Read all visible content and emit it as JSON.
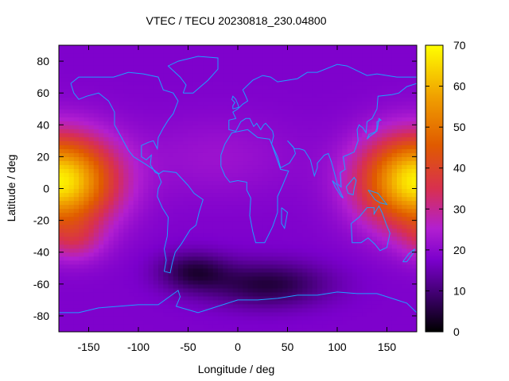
{
  "chart_data": {
    "type": "heatmap",
    "title": "VTEC / TECU 20230818_230.04800",
    "xlabel": "Longitude / deg",
    "ylabel": "Latitude / deg",
    "xlim": [
      -180,
      180
    ],
    "ylim": [
      -90,
      90
    ],
    "x_ticks": [
      -150,
      -100,
      -50,
      0,
      50,
      100,
      150
    ],
    "y_ticks": [
      -80,
      -60,
      -40,
      -20,
      0,
      20,
      40,
      60,
      80
    ],
    "colorbar": {
      "range": [
        0,
        70
      ],
      "ticks": [
        0,
        10,
        20,
        30,
        40,
        50,
        60,
        70
      ],
      "palette": [
        "#000000",
        "#3a0066",
        "#7b00cc",
        "#b21fd0",
        "#d8304f",
        "#e05a00",
        "#f0a000",
        "#ffff00"
      ]
    },
    "grid": false,
    "overlay": "coastlines",
    "features": [
      {
        "name": "peak-pacific-west",
        "lon": -180,
        "lat": 5,
        "vtec": 68
      },
      {
        "name": "peak-pacific-east",
        "lon": 180,
        "lat": 5,
        "vtec": 68
      },
      {
        "name": "south-anomaly",
        "lon": -165,
        "lat": -32,
        "vtec": 38
      },
      {
        "name": "atlantic-minimum",
        "lon": -45,
        "lat": -52,
        "vtec": 6
      },
      {
        "name": "southern-ocean-minimum",
        "lon": 30,
        "lat": -60,
        "vtec": 5
      }
    ],
    "background_vtec": 18
  }
}
